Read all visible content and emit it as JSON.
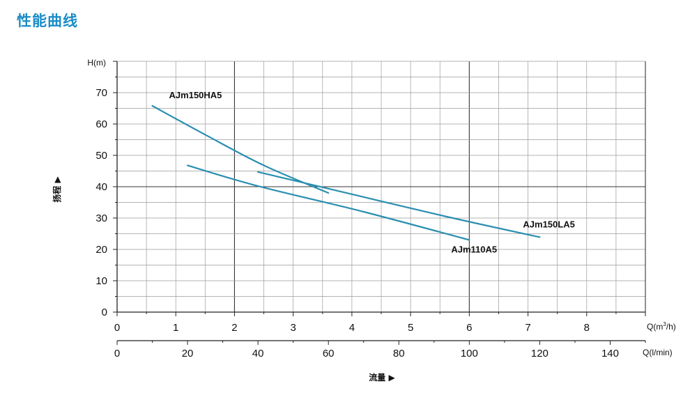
{
  "page": {
    "title": "性能曲线"
  },
  "chart_data": {
    "type": "line",
    "ylabel_unit": "H(m)",
    "ylabel": "扬程 ▶",
    "xlabel": "流量 ▶",
    "x_unit_primary": "Q(m³/h)",
    "x_unit_primary_parts": [
      "Q(m",
      "3",
      "/h)"
    ],
    "x_unit_secondary": "Q(l/min)",
    "xlim": [
      0,
      9
    ],
    "ylim": [
      0,
      80
    ],
    "y_ticks": [
      0,
      10,
      20,
      30,
      40,
      50,
      60,
      70
    ],
    "x_ticks_m3h": [
      0,
      1,
      2,
      3,
      4,
      5,
      6,
      7,
      8
    ],
    "x_ticks_lmin": [
      0,
      20,
      40,
      60,
      80,
      100,
      120,
      140
    ],
    "grid": true,
    "colors": {
      "curve": "#2a8fb0",
      "grid_minor": "#9a9a9a",
      "grid_major": "#333333",
      "title": "#1a8cc7"
    },
    "series": [
      {
        "name": "AJm150HA5",
        "x": [
          0.6,
          1.5,
          2.5,
          3.6
        ],
        "y": [
          65.8,
          56.6,
          46.8,
          38.0
        ]
      },
      {
        "name": "AJm110A5",
        "x": [
          1.2,
          2.4,
          4.2,
          6.0
        ],
        "y": [
          46.8,
          40.2,
          32.0,
          23.0
        ]
      },
      {
        "name": "AJm150LA5",
        "x": [
          2.4,
          4.0,
          5.6,
          7.2
        ],
        "y": [
          44.7,
          37.6,
          30.5,
          23.9
        ]
      }
    ]
  }
}
